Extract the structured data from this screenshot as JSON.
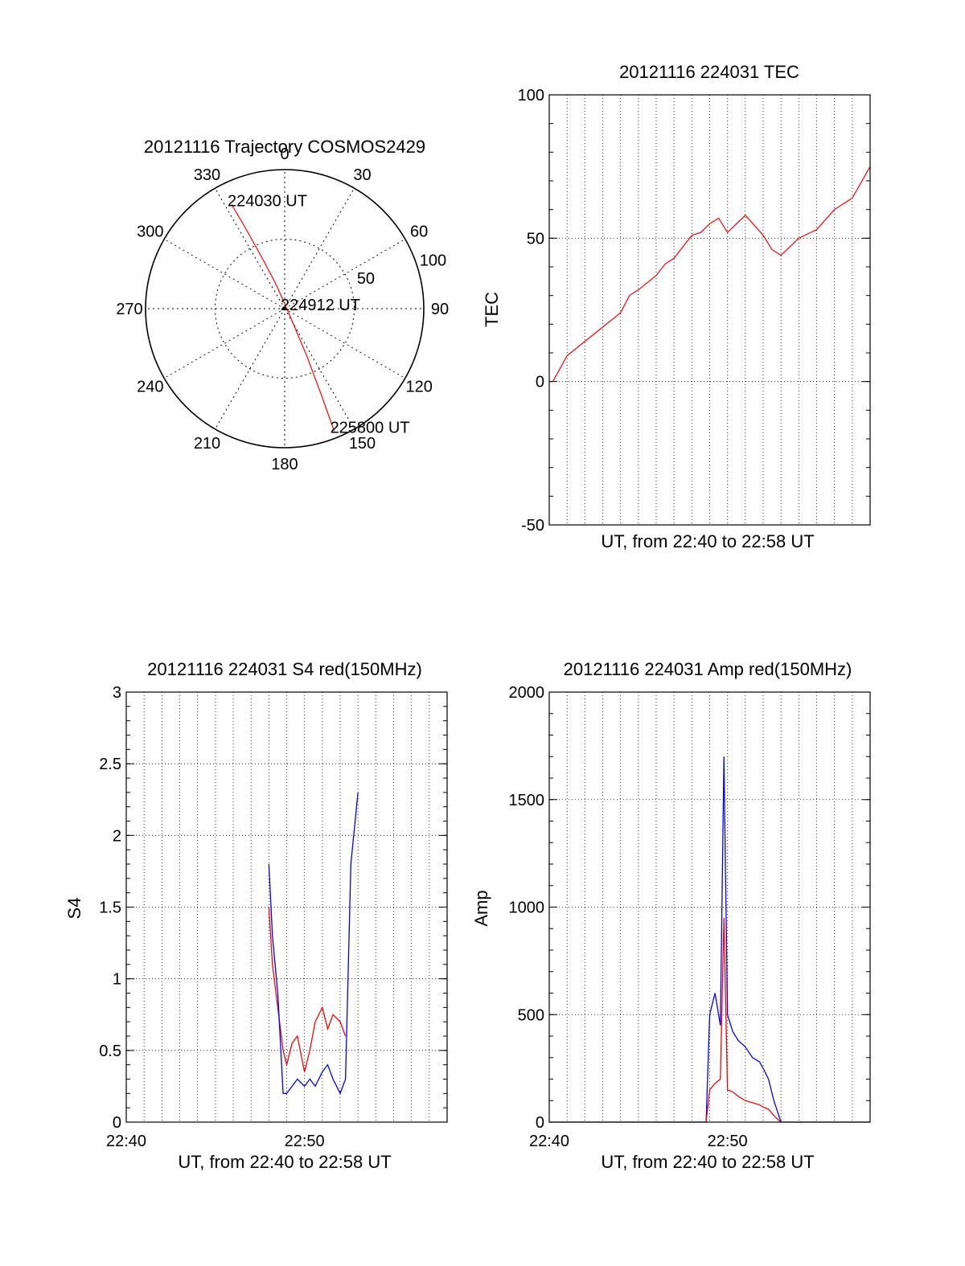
{
  "chart_data": [
    {
      "id": "polar",
      "type": "polar-trajectory",
      "title": "20121116 Trajectory COSMOS2429",
      "angle_labels": [
        "0",
        "30",
        "60",
        "90",
        "120",
        "150",
        "180",
        "210",
        "240",
        "270",
        "300",
        "330"
      ],
      "angles": [
        0,
        30,
        60,
        90,
        120,
        150,
        180,
        210,
        240,
        270,
        300,
        330
      ],
      "radial_labels": [
        "50",
        "100"
      ],
      "radial_values": [
        50,
        100
      ],
      "track": [
        [
          333,
          84
        ],
        [
          334,
          66
        ],
        [
          336,
          40
        ],
        [
          340,
          20
        ],
        [
          350,
          6
        ],
        [
          150,
          12
        ],
        [
          155,
          38
        ],
        [
          157,
          68
        ],
        [
          158,
          95
        ]
      ],
      "pass_labels": [
        {
          "text": "224030 UT",
          "az": 333,
          "r": 84
        },
        {
          "text": "224912 UT",
          "az": 0,
          "r": 0
        },
        {
          "text": "225800 UT",
          "az": 158,
          "r": 95
        }
      ],
      "track_color": "#ff0000"
    },
    {
      "id": "tec",
      "type": "line",
      "title": "20121116 224031 TEC",
      "xlabel": "UT, from 22:40 to 22:58 UT",
      "ylabel": "TEC",
      "ylim": [
        -50,
        100
      ],
      "xlim": [
        0,
        18
      ],
      "yticks": [
        "-50",
        "0",
        "50",
        "100"
      ],
      "series": [
        {
          "color": "#ff0000",
          "x": [
            0.2,
            1,
            2,
            3,
            4,
            4.5,
            5,
            6,
            6.5,
            7,
            7.5,
            8,
            8.5,
            9,
            9.5,
            10,
            11,
            12,
            12.5,
            13,
            14,
            15,
            16,
            17,
            18
          ],
          "y": [
            0,
            9,
            14,
            19,
            24,
            30,
            32,
            37,
            41,
            43,
            47,
            51,
            52,
            55,
            57,
            52,
            58,
            51,
            46,
            44,
            50,
            53,
            60,
            64,
            75
          ]
        }
      ]
    },
    {
      "id": "s4",
      "type": "line",
      "title": "20121116 224031 S4 red(150MHz)",
      "xlabel": "UT, from 22:40 to 22:58 UT",
      "ylabel": "S4",
      "ylim": [
        0,
        3
      ],
      "xlim": [
        0,
        18
      ],
      "yticks": [
        "0",
        "0.5",
        "1",
        "1.5",
        "2",
        "2.5",
        "3"
      ],
      "xticks": [
        "22:40",
        "22:50"
      ],
      "series": [
        {
          "color": "#ff0000",
          "x": [
            8,
            8.2,
            8.5,
            8.8,
            9,
            9.3,
            9.6,
            10,
            10.3,
            10.6,
            11,
            11.3,
            11.6,
            12,
            12.3
          ],
          "y": [
            1.5,
            1.1,
            0.8,
            0.5,
            0.4,
            0.55,
            0.6,
            0.35,
            0.5,
            0.7,
            0.8,
            0.65,
            0.75,
            0.7,
            0.6
          ]
        },
        {
          "color": "#0000ff",
          "x": [
            8,
            8.2,
            8.5,
            8.8,
            9,
            9.3,
            9.6,
            10,
            10.3,
            10.6,
            11,
            11.3,
            11.6,
            12,
            12.3,
            12.6,
            13
          ],
          "y": [
            1.8,
            1.3,
            0.9,
            0.2,
            0.2,
            0.25,
            0.3,
            0.25,
            0.3,
            0.25,
            0.35,
            0.4,
            0.3,
            0.2,
            0.3,
            1.8,
            2.3
          ]
        }
      ]
    },
    {
      "id": "amp",
      "type": "line",
      "title": "20121116 224031 Amp red(150MHz)",
      "xlabel": "UT, from 22:40 to 22:58 UT",
      "ylabel": "Amp",
      "ylim": [
        0,
        2000
      ],
      "xlim": [
        0,
        18
      ],
      "yticks": [
        "0",
        "500",
        "1000",
        "1500",
        "2000"
      ],
      "xticks": [
        "22:40",
        "22:50"
      ],
      "series": [
        {
          "color": "#0000ff",
          "x": [
            0,
            8.8,
            9,
            9.3,
            9.6,
            9.8,
            10,
            10.3,
            10.6,
            11,
            11.4,
            11.8,
            12,
            12.3,
            12.6,
            13,
            18
          ],
          "y": [
            0,
            0,
            500,
            600,
            450,
            1700,
            500,
            420,
            380,
            350,
            300,
            280,
            250,
            200,
            100,
            0,
            0
          ]
        },
        {
          "color": "#ff0000",
          "x": [
            8.8,
            9,
            9.3,
            9.6,
            9.8,
            10,
            10.3,
            10.6,
            11,
            11.4,
            11.8,
            12,
            12.3,
            12.6,
            13
          ],
          "y": [
            0,
            150,
            180,
            200,
            950,
            150,
            140,
            120,
            100,
            90,
            80,
            70,
            60,
            30,
            0
          ]
        }
      ]
    }
  ]
}
